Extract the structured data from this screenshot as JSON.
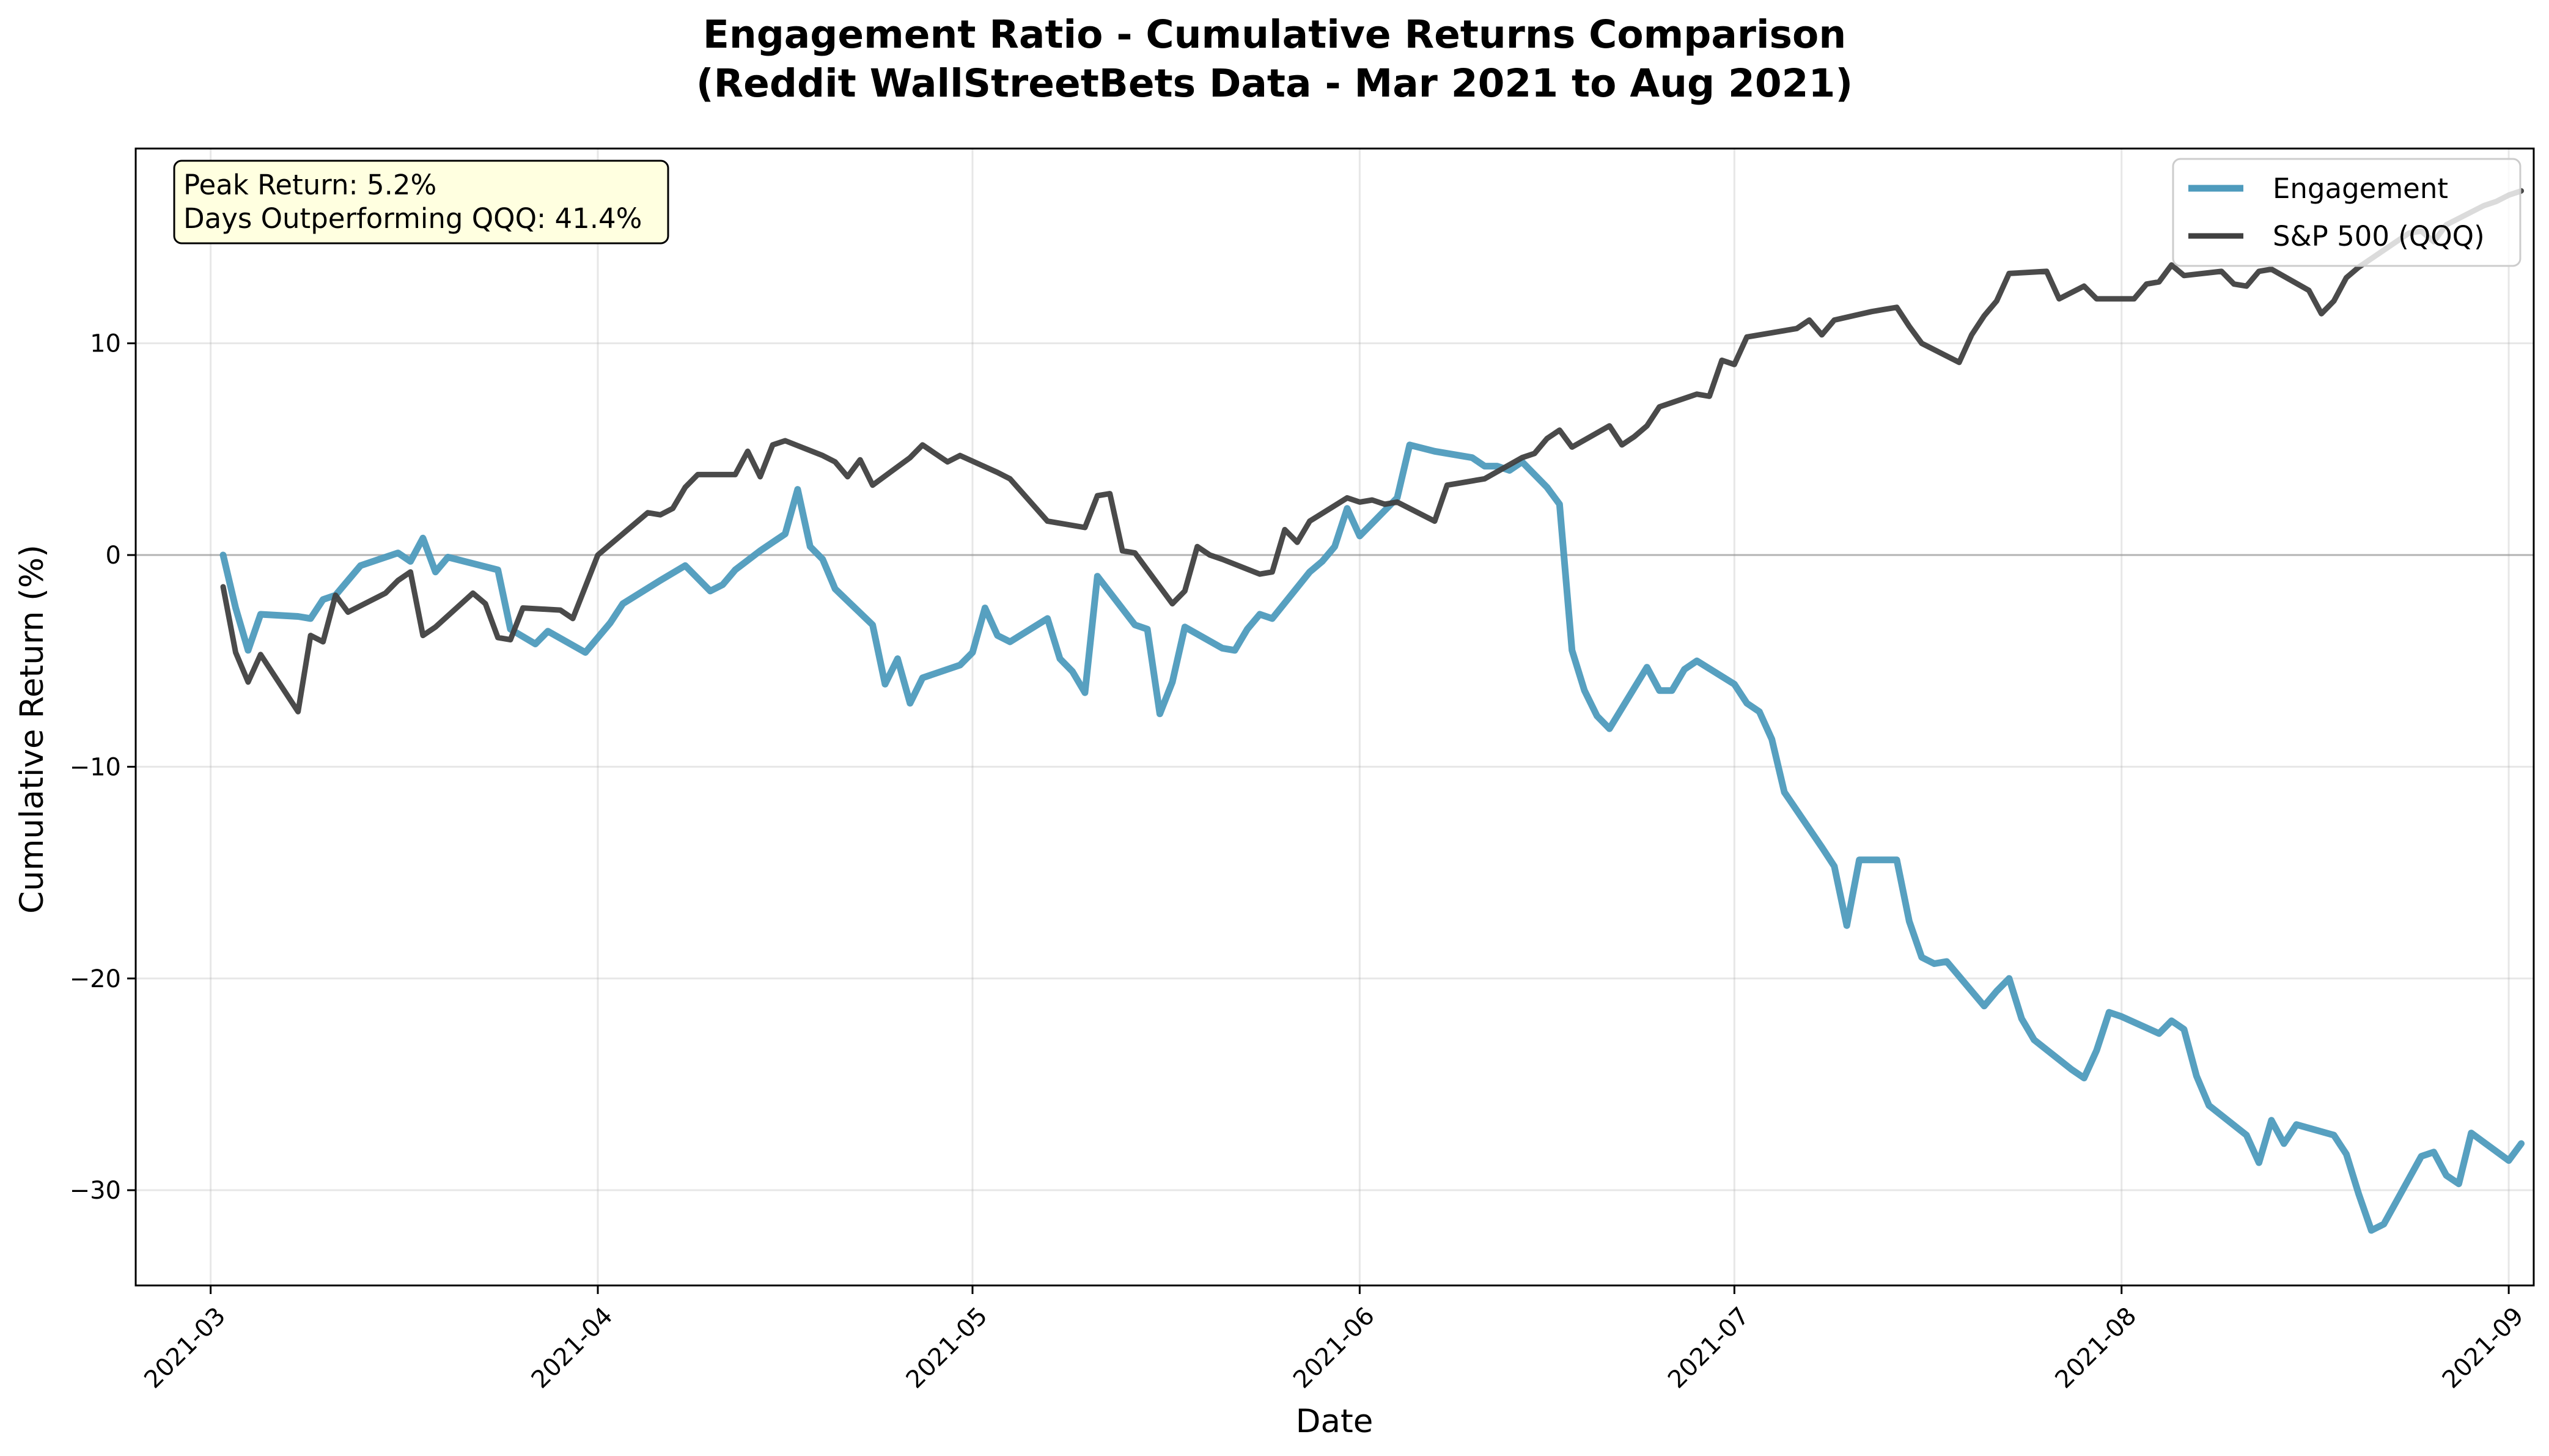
{
  "chart_data": {
    "type": "line",
    "title_line1": "Engagement Ratio - Cumulative Returns Comparison",
    "title_line2": "(Reddit WallStreetBets Data - Mar 2021 to Aug 2021)",
    "xlabel": "Date",
    "ylabel": "Cumulative Return (%)",
    "xlim": [
      "2021-02-23",
      "2021-09-03"
    ],
    "ylim": [
      -34.5,
      19.2
    ],
    "x_ticks": [
      "2021-03",
      "2021-04",
      "2021-05",
      "2021-06",
      "2021-07",
      "2021-08",
      "2021-09"
    ],
    "y_ticks": [
      10,
      0,
      -10,
      -20,
      -30
    ],
    "y_tick_labels": [
      "10",
      "0",
      "−10",
      "−20",
      "−30"
    ],
    "grid": true,
    "zero_line": true,
    "legend_position": "top-right",
    "annotation": {
      "line1": "Peak Return: 5.2%",
      "line2": "Days Outperforming QQQ: 41.4%"
    },
    "series": [
      {
        "name": "Engagement",
        "color": "#4e9bbd",
        "points": [
          [
            "2021-03-02",
            0.0
          ],
          [
            "2021-03-03",
            -2.5
          ],
          [
            "2021-03-04",
            -4.5
          ],
          [
            "2021-03-05",
            -2.8
          ],
          [
            "2021-03-08",
            -2.9
          ],
          [
            "2021-03-09",
            -3.0
          ],
          [
            "2021-03-10",
            -2.1
          ],
          [
            "2021-03-11",
            -1.9
          ],
          [
            "2021-03-12",
            -1.2
          ],
          [
            "2021-03-13",
            -0.5
          ],
          [
            "2021-03-16",
            0.1
          ],
          [
            "2021-03-17",
            -0.3
          ],
          [
            "2021-03-18",
            0.8
          ],
          [
            "2021-03-19",
            -0.8
          ],
          [
            "2021-03-20",
            -0.1
          ],
          [
            "2021-03-24",
            -0.7
          ],
          [
            "2021-03-25",
            -3.5
          ],
          [
            "2021-03-27",
            -4.2
          ],
          [
            "2021-03-28",
            -3.6
          ],
          [
            "2021-03-31",
            -4.6
          ],
          [
            "2021-04-02",
            -3.2
          ],
          [
            "2021-04-03",
            -2.3
          ],
          [
            "2021-04-06",
            -1.2
          ],
          [
            "2021-04-08",
            -0.5
          ],
          [
            "2021-04-10",
            -1.7
          ],
          [
            "2021-04-11",
            -1.4
          ],
          [
            "2021-04-12",
            -0.7
          ],
          [
            "2021-04-14",
            0.2
          ],
          [
            "2021-04-16",
            1.0
          ],
          [
            "2021-04-17",
            3.1
          ],
          [
            "2021-04-18",
            0.4
          ],
          [
            "2021-04-19",
            -0.2
          ],
          [
            "2021-04-20",
            -1.6
          ],
          [
            "2021-04-23",
            -3.3
          ],
          [
            "2021-04-24",
            -6.1
          ],
          [
            "2021-04-25",
            -4.9
          ],
          [
            "2021-04-26",
            -7.0
          ],
          [
            "2021-04-27",
            -5.8
          ],
          [
            "2021-04-30",
            -5.2
          ],
          [
            "2021-05-01",
            -4.6
          ],
          [
            "2021-05-02",
            -2.5
          ],
          [
            "2021-05-03",
            -3.8
          ],
          [
            "2021-05-04",
            -4.1
          ],
          [
            "2021-05-07",
            -3.0
          ],
          [
            "2021-05-08",
            -4.9
          ],
          [
            "2021-05-09",
            -5.5
          ],
          [
            "2021-05-10",
            -6.5
          ],
          [
            "2021-05-11",
            -1.0
          ],
          [
            "2021-05-14",
            -3.3
          ],
          [
            "2021-05-15",
            -3.5
          ],
          [
            "2021-05-16",
            -7.5
          ],
          [
            "2021-05-17",
            -6.0
          ],
          [
            "2021-05-18",
            -3.4
          ],
          [
            "2021-05-21",
            -4.4
          ],
          [
            "2021-05-22",
            -4.5
          ],
          [
            "2021-05-23",
            -3.5
          ],
          [
            "2021-05-24",
            -2.8
          ],
          [
            "2021-05-25",
            -3.0
          ],
          [
            "2021-05-28",
            -0.8
          ],
          [
            "2021-05-29",
            -0.3
          ],
          [
            "2021-05-30",
            0.4
          ],
          [
            "2021-05-31",
            2.2
          ],
          [
            "2021-06-01",
            0.9
          ],
          [
            "2021-06-04",
            2.7
          ],
          [
            "2021-06-05",
            5.2
          ],
          [
            "2021-06-07",
            4.9
          ],
          [
            "2021-06-10",
            4.6
          ],
          [
            "2021-06-11",
            4.2
          ],
          [
            "2021-06-12",
            4.2
          ],
          [
            "2021-06-13",
            4.0
          ],
          [
            "2021-06-14",
            4.4
          ],
          [
            "2021-06-16",
            3.2
          ],
          [
            "2021-06-17",
            2.4
          ],
          [
            "2021-06-18",
            -4.5
          ],
          [
            "2021-06-19",
            -6.4
          ],
          [
            "2021-06-20",
            -7.6
          ],
          [
            "2021-06-21",
            -8.2
          ],
          [
            "2021-06-24",
            -5.3
          ],
          [
            "2021-06-25",
            -6.4
          ],
          [
            "2021-06-26",
            -6.4
          ],
          [
            "2021-06-27",
            -5.4
          ],
          [
            "2021-06-28",
            -5.0
          ],
          [
            "2021-07-01",
            -6.1
          ],
          [
            "2021-07-02",
            -7.0
          ],
          [
            "2021-07-03",
            -7.4
          ],
          [
            "2021-07-04",
            -8.7
          ],
          [
            "2021-07-05",
            -11.2
          ],
          [
            "2021-07-08",
            -13.8
          ],
          [
            "2021-07-09",
            -14.7
          ],
          [
            "2021-07-10",
            -17.5
          ],
          [
            "2021-07-11",
            -14.4
          ],
          [
            "2021-07-14",
            -14.4
          ],
          [
            "2021-07-15",
            -17.3
          ],
          [
            "2021-07-16",
            -19.0
          ],
          [
            "2021-07-17",
            -19.3
          ],
          [
            "2021-07-18",
            -19.2
          ],
          [
            "2021-07-21",
            -21.3
          ],
          [
            "2021-07-22",
            -20.6
          ],
          [
            "2021-07-23",
            -20.0
          ],
          [
            "2021-07-24",
            -21.9
          ],
          [
            "2021-07-25",
            -22.9
          ],
          [
            "2021-07-28",
            -24.3
          ],
          [
            "2021-07-29",
            -24.7
          ],
          [
            "2021-07-30",
            -23.4
          ],
          [
            "2021-07-31",
            -21.6
          ],
          [
            "2021-08-01",
            -21.8
          ],
          [
            "2021-08-04",
            -22.6
          ],
          [
            "2021-08-05",
            -22.0
          ],
          [
            "2021-08-06",
            -22.4
          ],
          [
            "2021-08-07",
            -24.6
          ],
          [
            "2021-08-08",
            -26.0
          ],
          [
            "2021-08-11",
            -27.4
          ],
          [
            "2021-08-12",
            -28.7
          ],
          [
            "2021-08-13",
            -26.7
          ],
          [
            "2021-08-14",
            -27.8
          ],
          [
            "2021-08-15",
            -26.9
          ],
          [
            "2021-08-18",
            -27.4
          ],
          [
            "2021-08-19",
            -28.3
          ],
          [
            "2021-08-20",
            -30.2
          ],
          [
            "2021-08-21",
            -31.9
          ],
          [
            "2021-08-22",
            -31.6
          ],
          [
            "2021-08-25",
            -28.4
          ],
          [
            "2021-08-26",
            -28.2
          ],
          [
            "2021-08-27",
            -29.3
          ],
          [
            "2021-08-28",
            -29.7
          ],
          [
            "2021-08-29",
            -27.3
          ],
          [
            "2021-09-01",
            -28.6
          ],
          [
            "2021-09-02",
            -27.8
          ]
        ]
      },
      {
        "name": "S&P 500 (QQQ)",
        "color": "#404040",
        "points": [
          [
            "2021-03-02",
            -1.5
          ],
          [
            "2021-03-03",
            -4.6
          ],
          [
            "2021-03-04",
            -6.0
          ],
          [
            "2021-03-05",
            -4.7
          ],
          [
            "2021-03-08",
            -7.4
          ],
          [
            "2021-03-09",
            -3.8
          ],
          [
            "2021-03-10",
            -4.1
          ],
          [
            "2021-03-11",
            -1.9
          ],
          [
            "2021-03-12",
            -2.7
          ],
          [
            "2021-03-15",
            -1.8
          ],
          [
            "2021-03-16",
            -1.2
          ],
          [
            "2021-03-17",
            -0.8
          ],
          [
            "2021-03-18",
            -3.8
          ],
          [
            "2021-03-19",
            -3.4
          ],
          [
            "2021-03-22",
            -1.8
          ],
          [
            "2021-03-23",
            -2.3
          ],
          [
            "2021-03-24",
            -3.9
          ],
          [
            "2021-03-25",
            -4.0
          ],
          [
            "2021-03-26",
            -2.5
          ],
          [
            "2021-03-29",
            -2.6
          ],
          [
            "2021-03-30",
            -3.0
          ],
          [
            "2021-04-01",
            0.0
          ],
          [
            "2021-04-05",
            2.0
          ],
          [
            "2021-04-06",
            1.9
          ],
          [
            "2021-04-07",
            2.2
          ],
          [
            "2021-04-08",
            3.2
          ],
          [
            "2021-04-09",
            3.8
          ],
          [
            "2021-04-12",
            3.8
          ],
          [
            "2021-04-13",
            4.9
          ],
          [
            "2021-04-14",
            3.7
          ],
          [
            "2021-04-15",
            5.2
          ],
          [
            "2021-04-16",
            5.4
          ],
          [
            "2021-04-19",
            4.7
          ],
          [
            "2021-04-20",
            4.4
          ],
          [
            "2021-04-21",
            3.7
          ],
          [
            "2021-04-22",
            4.5
          ],
          [
            "2021-04-23",
            3.3
          ],
          [
            "2021-04-26",
            4.6
          ],
          [
            "2021-04-27",
            5.2
          ],
          [
            "2021-04-28",
            4.8
          ],
          [
            "2021-04-29",
            4.4
          ],
          [
            "2021-04-30",
            4.7
          ],
          [
            "2021-05-03",
            3.9
          ],
          [
            "2021-05-04",
            3.6
          ],
          [
            "2021-05-07",
            1.6
          ],
          [
            "2021-05-10",
            1.3
          ],
          [
            "2021-05-11",
            2.8
          ],
          [
            "2021-05-12",
            2.9
          ],
          [
            "2021-05-13",
            0.2
          ],
          [
            "2021-05-14",
            0.1
          ],
          [
            "2021-05-17",
            -2.3
          ],
          [
            "2021-05-18",
            -1.7
          ],
          [
            "2021-05-19",
            0.4
          ],
          [
            "2021-05-20",
            0.0
          ],
          [
            "2021-05-21",
            -0.2
          ],
          [
            "2021-05-24",
            -0.9
          ],
          [
            "2021-05-25",
            -0.8
          ],
          [
            "2021-05-26",
            1.2
          ],
          [
            "2021-05-27",
            0.6
          ],
          [
            "2021-05-28",
            1.6
          ],
          [
            "2021-05-31",
            2.7
          ],
          [
            "2021-06-01",
            2.5
          ],
          [
            "2021-06-02",
            2.6
          ],
          [
            "2021-06-03",
            2.4
          ],
          [
            "2021-06-04",
            2.5
          ],
          [
            "2021-06-07",
            1.6
          ],
          [
            "2021-06-08",
            3.3
          ],
          [
            "2021-06-09",
            3.4
          ],
          [
            "2021-06-10",
            3.5
          ],
          [
            "2021-06-11",
            3.6
          ],
          [
            "2021-06-14",
            4.6
          ],
          [
            "2021-06-15",
            4.8
          ],
          [
            "2021-06-16",
            5.5
          ],
          [
            "2021-06-17",
            5.9
          ],
          [
            "2021-06-18",
            5.1
          ],
          [
            "2021-06-21",
            6.1
          ],
          [
            "2021-06-22",
            5.2
          ],
          [
            "2021-06-23",
            5.6
          ],
          [
            "2021-06-24",
            6.1
          ],
          [
            "2021-06-25",
            7.0
          ],
          [
            "2021-06-28",
            7.6
          ],
          [
            "2021-06-29",
            7.5
          ],
          [
            "2021-06-30",
            9.2
          ],
          [
            "2021-07-01",
            9.0
          ],
          [
            "2021-07-02",
            10.3
          ],
          [
            "2021-07-06",
            10.7
          ],
          [
            "2021-07-07",
            11.1
          ],
          [
            "2021-07-08",
            10.4
          ],
          [
            "2021-07-09",
            11.1
          ],
          [
            "2021-07-12",
            11.5
          ],
          [
            "2021-07-13",
            11.6
          ],
          [
            "2021-07-14",
            11.7
          ],
          [
            "2021-07-15",
            10.8
          ],
          [
            "2021-07-16",
            10.0
          ],
          [
            "2021-07-19",
            9.1
          ],
          [
            "2021-07-20",
            10.4
          ],
          [
            "2021-07-21",
            11.3
          ],
          [
            "2021-07-22",
            12.0
          ],
          [
            "2021-07-23",
            13.3
          ],
          [
            "2021-07-26",
            13.4
          ],
          [
            "2021-07-27",
            12.1
          ],
          [
            "2021-07-28",
            12.4
          ],
          [
            "2021-07-29",
            12.7
          ],
          [
            "2021-07-30",
            12.1
          ],
          [
            "2021-08-02",
            12.1
          ],
          [
            "2021-08-03",
            12.8
          ],
          [
            "2021-08-04",
            12.9
          ],
          [
            "2021-08-05",
            13.7
          ],
          [
            "2021-08-06",
            13.2
          ],
          [
            "2021-08-09",
            13.4
          ],
          [
            "2021-08-10",
            12.8
          ],
          [
            "2021-08-11",
            12.7
          ],
          [
            "2021-08-12",
            13.4
          ],
          [
            "2021-08-13",
            13.5
          ],
          [
            "2021-08-16",
            12.5
          ],
          [
            "2021-08-17",
            11.4
          ],
          [
            "2021-08-18",
            12.0
          ],
          [
            "2021-08-19",
            13.1
          ],
          [
            "2021-08-20",
            13.6
          ],
          [
            "2021-08-23",
            14.8
          ],
          [
            "2021-08-24",
            15.2
          ],
          [
            "2021-08-25",
            15.3
          ],
          [
            "2021-08-26",
            14.8
          ],
          [
            "2021-08-27",
            15.6
          ],
          [
            "2021-08-30",
            16.5
          ],
          [
            "2021-08-31",
            16.7
          ],
          [
            "2021-09-01",
            17.0
          ],
          [
            "2021-09-02",
            17.2
          ]
        ]
      }
    ]
  }
}
